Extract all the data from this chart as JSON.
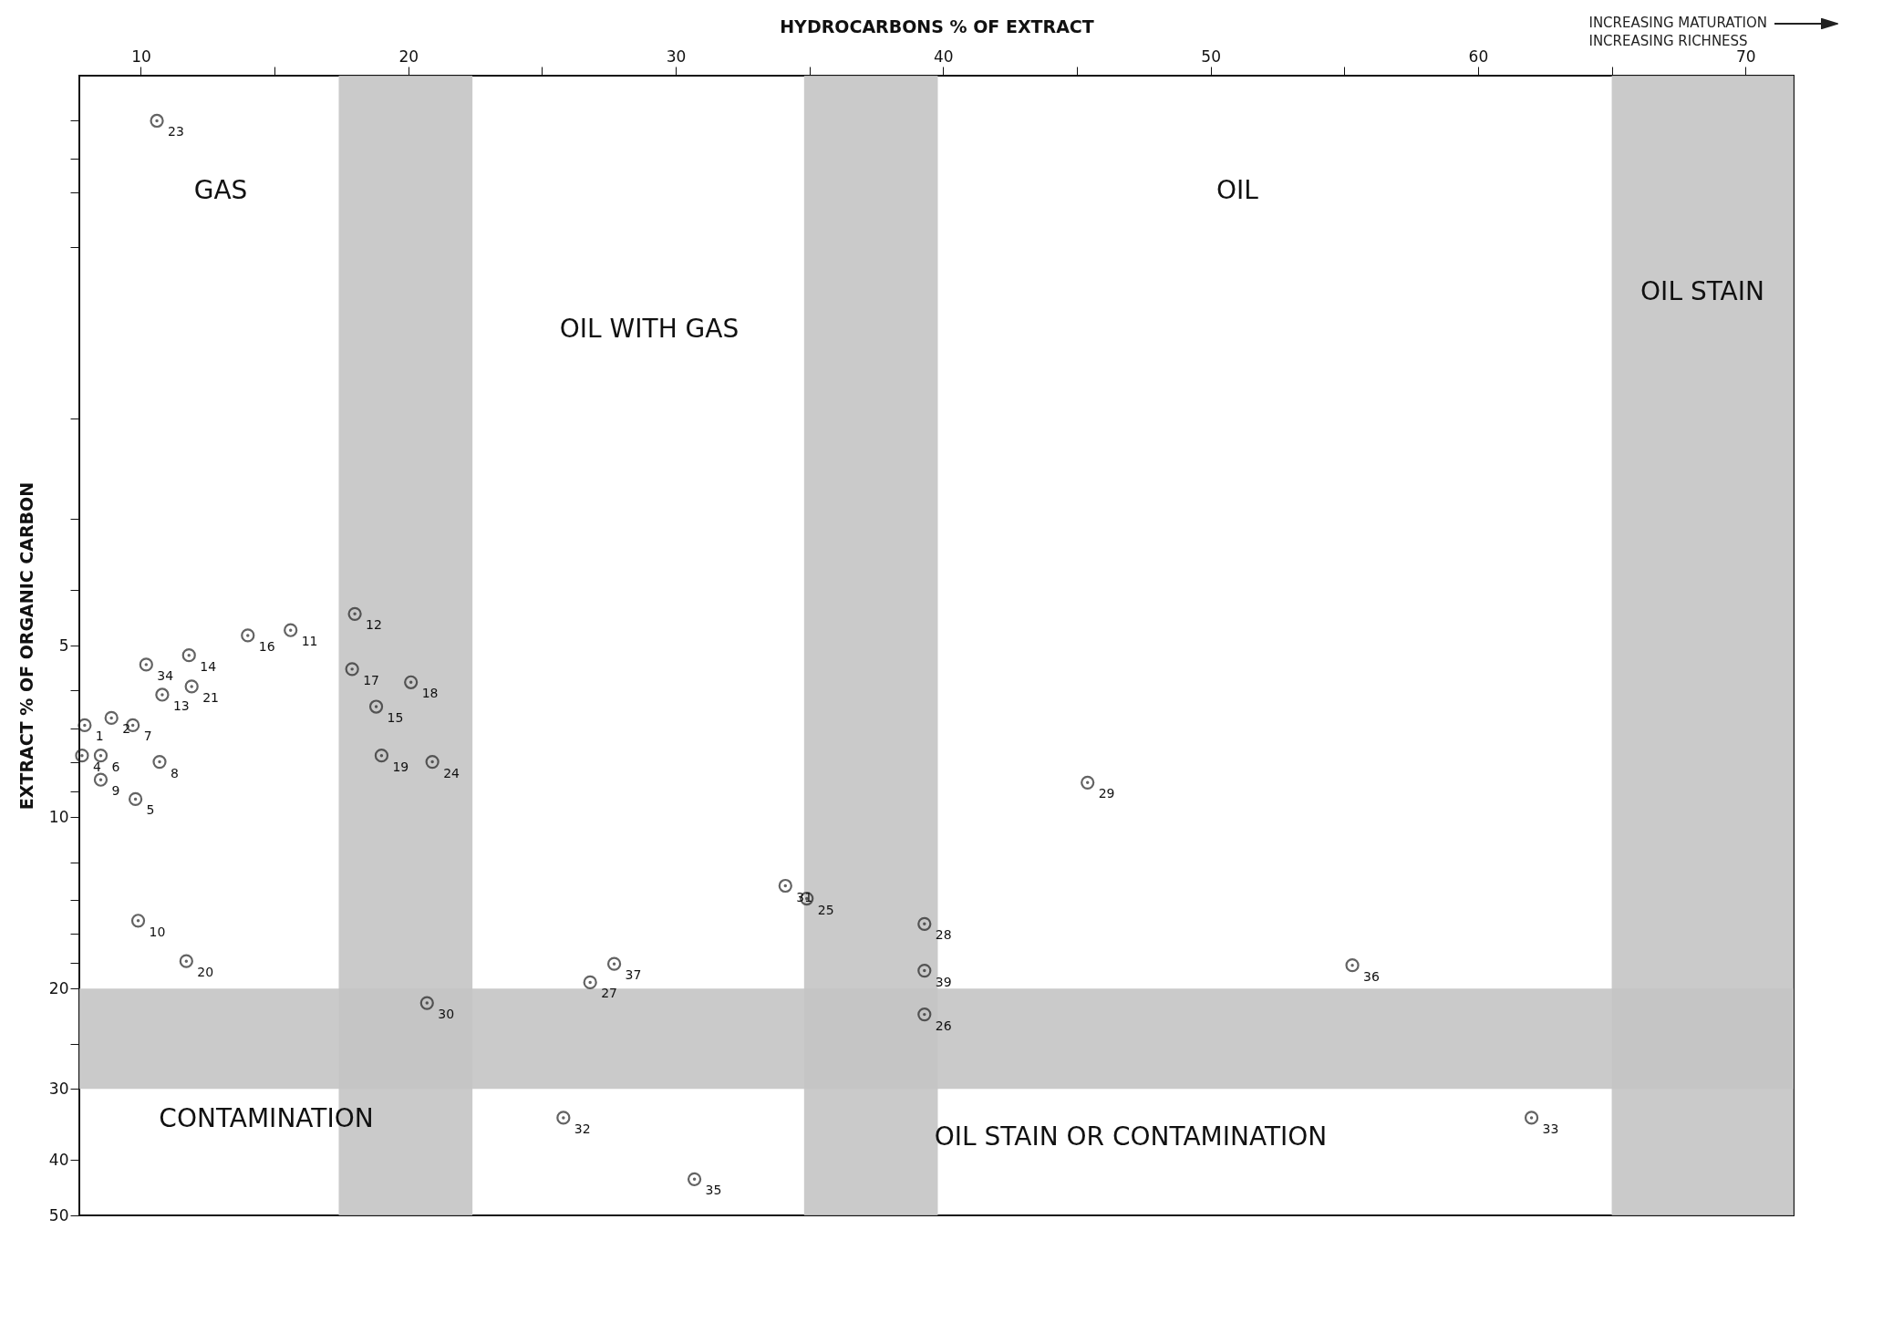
{
  "chart_data": {
    "type": "scatter",
    "xlabel": "HYDROCARBONS % OF EXTRACT",
    "ylabel": "EXTRACT % OF ORGANIC CARBON",
    "xlim": [
      7.7,
      71.8
    ],
    "xticks": [
      10,
      {
        "value": 15,
        "label": null
      },
      20,
      {
        "value": 25,
        "label": null
      },
      30,
      {
        "value": 35,
        "label": null
      },
      40,
      {
        "value": 45,
        "label": null
      },
      50,
      {
        "value": 55,
        "label": null
      },
      60,
      {
        "value": 65,
        "label": null
      },
      70
    ],
    "ylim": [
      50,
      0.5
    ],
    "yticks": [
      {
        "value": 0.6,
        "label": null
      },
      {
        "value": 0.7,
        "label": null
      },
      {
        "value": 0.8,
        "label": null
      },
      {
        "value": 1,
        "label": null
      },
      {
        "value": 2,
        "label": null
      },
      {
        "value": 3,
        "label": null
      },
      {
        "value": 4,
        "label": null
      },
      5,
      {
        "value": 6,
        "label": null
      },
      {
        "value": 7,
        "label": null
      },
      {
        "value": 8,
        "label": null
      },
      {
        "value": 9,
        "label": null
      },
      10,
      {
        "value": 12,
        "label": null
      },
      {
        "value": 14,
        "label": null
      },
      {
        "value": 16,
        "label": null
      },
      {
        "value": 18,
        "label": null
      },
      20,
      {
        "value": 25,
        "label": null
      },
      30,
      40,
      50
    ],
    "log": "y",
    "grid": false,
    "marker": "circle",
    "series": [
      {
        "color": "#222222",
        "x": [
          15.6,
          14.0,
          11.8,
          10.2,
          11.9,
          10.8,
          9.7,
          8.9,
          7.9,
          8.5,
          7.8,
          8.5,
          10.7,
          9.8,
          9.9,
          11.7,
          18.0,
          17.9,
          20.1,
          18.8,
          19.0,
          20.9,
          20.7,
          34.1,
          34.9,
          39.3,
          39.3,
          39.3,
          27.7,
          26.8,
          25.8,
          30.7,
          45.4,
          55.3,
          10.6,
          62.0
        ],
        "values": [
          4.7,
          4.8,
          5.2,
          5.4,
          5.9,
          6.1,
          6.9,
          6.7,
          6.9,
          7.8,
          7.8,
          8.6,
          8.0,
          9.3,
          15.2,
          17.9,
          4.4,
          5.5,
          5.8,
          6.4,
          7.8,
          8.0,
          21.2,
          13.2,
          13.9,
          15.4,
          18.6,
          22.2,
          18.1,
          19.5,
          33.7,
          43.2,
          8.7,
          18.2,
          0.6,
          33.7
        ]
      }
    ],
    "bands": [
      {
        "axis": "x",
        "from": 17.4,
        "to": 22.4,
        "color": "#c4c4c4"
      },
      {
        "axis": "x",
        "from": 34.8,
        "to": 39.8,
        "color": "#c4c4c4"
      },
      {
        "axis": "x",
        "from": 65.0,
        "to": 71.8,
        "color": "#c4c4c4"
      },
      {
        "axis": "y",
        "from": 20,
        "to": 30,
        "color": "#c4c4c4"
      }
    ],
    "annotations": [
      {
        "text": "11",
        "x": 15.6,
        "y": 4.7
      },
      {
        "text": "16",
        "x": 14.0,
        "y": 4.8
      },
      {
        "text": "14",
        "x": 11.8,
        "y": 5.2
      },
      {
        "text": "34",
        "x": 10.2,
        "y": 5.4
      },
      {
        "text": "21",
        "x": 11.9,
        "y": 5.9
      },
      {
        "text": "13",
        "x": 10.8,
        "y": 6.1
      },
      {
        "text": "7",
        "x": 9.7,
        "y": 6.9
      },
      {
        "text": "2",
        "x": 8.9,
        "y": 6.7
      },
      {
        "text": "1",
        "x": 7.9,
        "y": 6.9
      },
      {
        "text": "6",
        "x": 8.5,
        "y": 7.8
      },
      {
        "text": "4",
        "x": 7.8,
        "y": 7.8
      },
      {
        "text": "9",
        "x": 8.5,
        "y": 8.6
      },
      {
        "text": "8",
        "x": 10.7,
        "y": 8.0
      },
      {
        "text": "5",
        "x": 9.8,
        "y": 9.3
      },
      {
        "text": "10",
        "x": 9.9,
        "y": 15.2
      },
      {
        "text": "20",
        "x": 11.7,
        "y": 17.9
      },
      {
        "text": "12",
        "x": 18.0,
        "y": 4.4
      },
      {
        "text": "17",
        "x": 17.9,
        "y": 5.5
      },
      {
        "text": "18",
        "x": 20.1,
        "y": 5.8
      },
      {
        "text": "15",
        "x": 18.8,
        "y": 6.4
      },
      {
        "text": "19",
        "x": 19.0,
        "y": 7.8
      },
      {
        "text": "24",
        "x": 20.9,
        "y": 8.0
      },
      {
        "text": "30",
        "x": 20.7,
        "y": 21.2
      },
      {
        "text": "31",
        "x": 34.1,
        "y": 13.2
      },
      {
        "text": "25",
        "x": 34.9,
        "y": 13.9
      },
      {
        "text": "28",
        "x": 39.3,
        "y": 15.4
      },
      {
        "text": "39",
        "x": 39.3,
        "y": 18.6
      },
      {
        "text": "26",
        "x": 39.3,
        "y": 22.2
      },
      {
        "text": "37",
        "x": 27.7,
        "y": 18.1
      },
      {
        "text": "27",
        "x": 26.8,
        "y": 19.5
      },
      {
        "text": "32",
        "x": 25.8,
        "y": 33.7
      },
      {
        "text": "35",
        "x": 30.7,
        "y": 43.2
      },
      {
        "text": "29",
        "x": 45.4,
        "y": 8.7
      },
      {
        "text": "36",
        "x": 55.3,
        "y": 18.2
      },
      {
        "text": "23",
        "x": 10.6,
        "y": 0.6
      },
      {
        "text": "33",
        "x": 62.0,
        "y": 33.7
      },
      "GAS",
      "OIL WITH GAS",
      "OIL",
      "OIL STAIN",
      "CONTAMINATION",
      "OIL STAIN OR CONTAMINATION",
      "INCREASING MATURATION",
      "INCREASING RICHNESS"
    ]
  }
}
